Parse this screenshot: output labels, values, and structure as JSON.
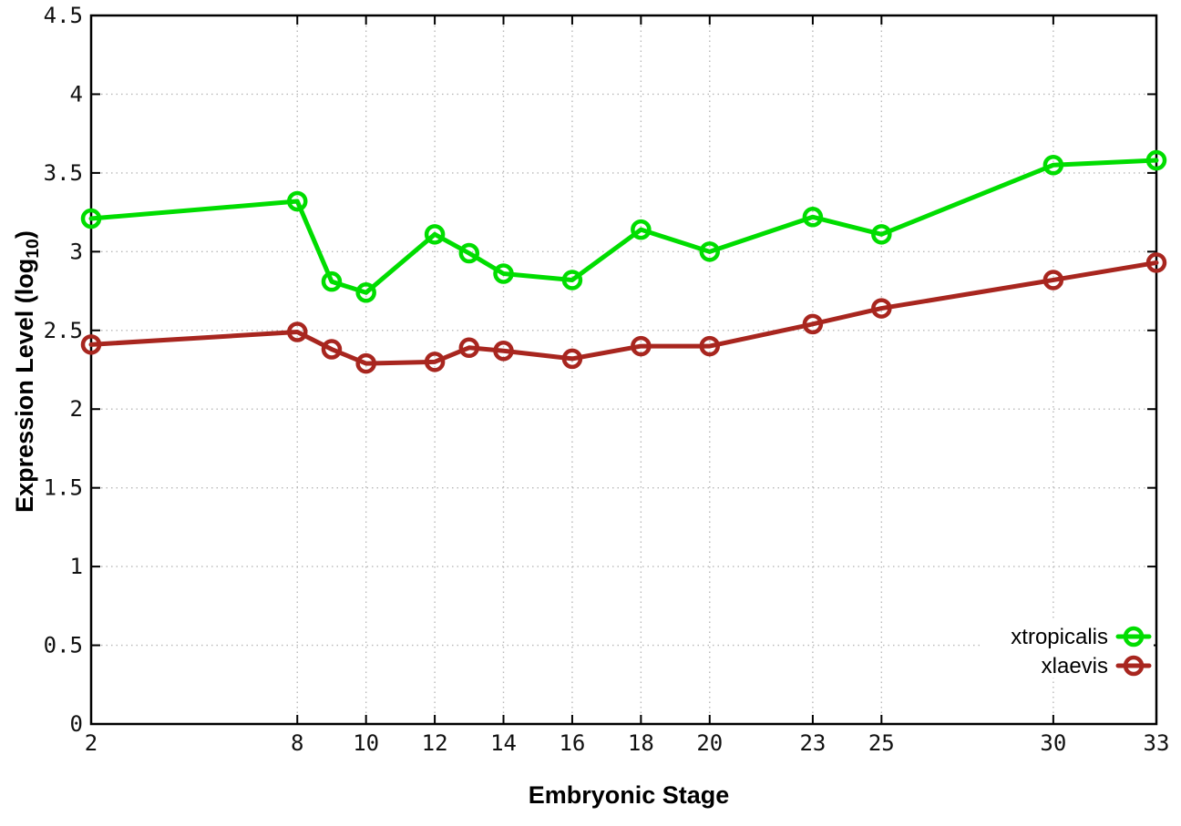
{
  "chart_data": {
    "type": "line",
    "xlabel": "Embryonic Stage",
    "ylabel": {
      "prefix": "Expression Level (log",
      "sub": "10",
      "suffix": ")"
    },
    "x": [
      2,
      8,
      9,
      10,
      12,
      13,
      14,
      16,
      18,
      20,
      23,
      25,
      30,
      33
    ],
    "series": [
      {
        "name": "xtropicalis",
        "color": "#00dd00",
        "values": [
          3.21,
          3.32,
          2.81,
          2.74,
          3.11,
          2.99,
          2.86,
          2.82,
          3.14,
          3.0,
          3.22,
          3.11,
          3.55,
          3.58
        ]
      },
      {
        "name": "xlaevis",
        "color": "#a8261f",
        "values": [
          2.41,
          2.49,
          2.38,
          2.29,
          2.3,
          2.39,
          2.37,
          2.32,
          2.4,
          2.4,
          2.54,
          2.64,
          2.82,
          2.93
        ]
      }
    ],
    "xlim": [
      2,
      33
    ],
    "ylim": [
      0,
      4.5
    ],
    "x_ticks": [
      2,
      8,
      10,
      12,
      14,
      16,
      18,
      20,
      23,
      25,
      30,
      33
    ],
    "y_ticks": [
      0,
      0.5,
      1,
      1.5,
      2,
      2.5,
      3,
      3.5,
      4,
      4.5
    ],
    "grid": true,
    "legend_position": "bottom-right",
    "marker": "open-circle"
  },
  "colors": {
    "background": "#ffffff",
    "border": "#000000",
    "grid": "#b8b8b8",
    "tick_label": "#111111",
    "series_green": "#00dd00",
    "series_darkred": "#a8261f"
  }
}
